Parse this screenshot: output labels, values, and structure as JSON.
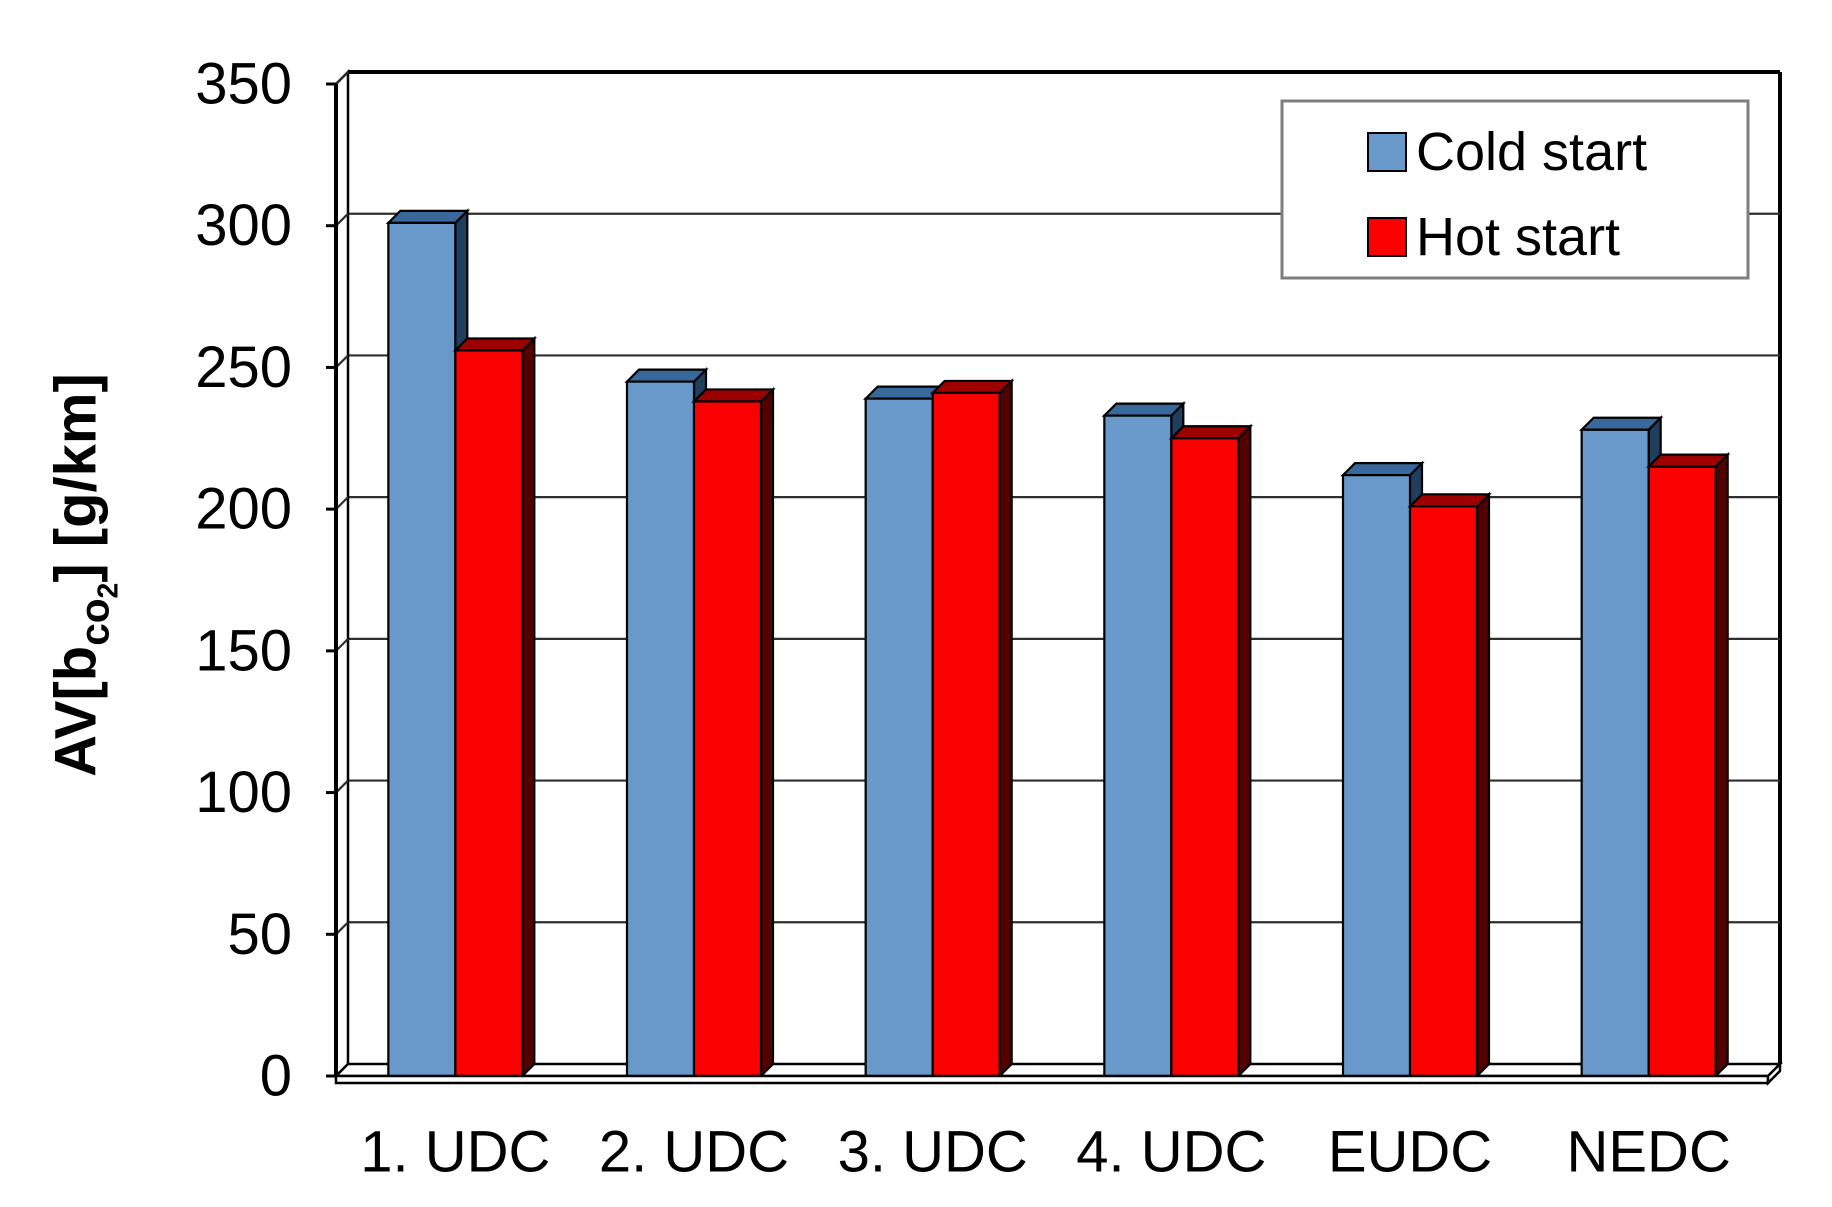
{
  "chart_data": {
    "type": "bar",
    "title": "",
    "ylabel": {
      "prefix": "AV[b",
      "sub": "co",
      "subsub": "2",
      "suffix": "] [g/km]"
    },
    "categories": [
      "1. UDC",
      "2. UDC",
      "3. UDC",
      "4. UDC",
      "EUDC",
      "NEDC"
    ],
    "series": [
      {
        "name": "Cold start",
        "color": "#6899CA",
        "top_color": "#39689B",
        "side_color": "#203F5E",
        "values": [
          301,
          245,
          239,
          233,
          212,
          228
        ]
      },
      {
        "name": "Hot start",
        "color": "#FB0000",
        "top_color": "#9E0000",
        "side_color": "#520000",
        "values": [
          256,
          238,
          241,
          225,
          201,
          215
        ]
      }
    ],
    "ylim": [
      0,
      350
    ],
    "ytick_step": 50,
    "yticks": [
      0,
      50,
      100,
      150,
      200,
      250,
      300,
      350
    ],
    "xlabel": "",
    "grid": true,
    "legend_position": "top-right",
    "style": "3d-shadow-bars",
    "colors": {
      "grid": "#2f2f2f",
      "frame": "#000000",
      "legend_border": "#7f7f7f",
      "background": "#ffffff"
    }
  }
}
